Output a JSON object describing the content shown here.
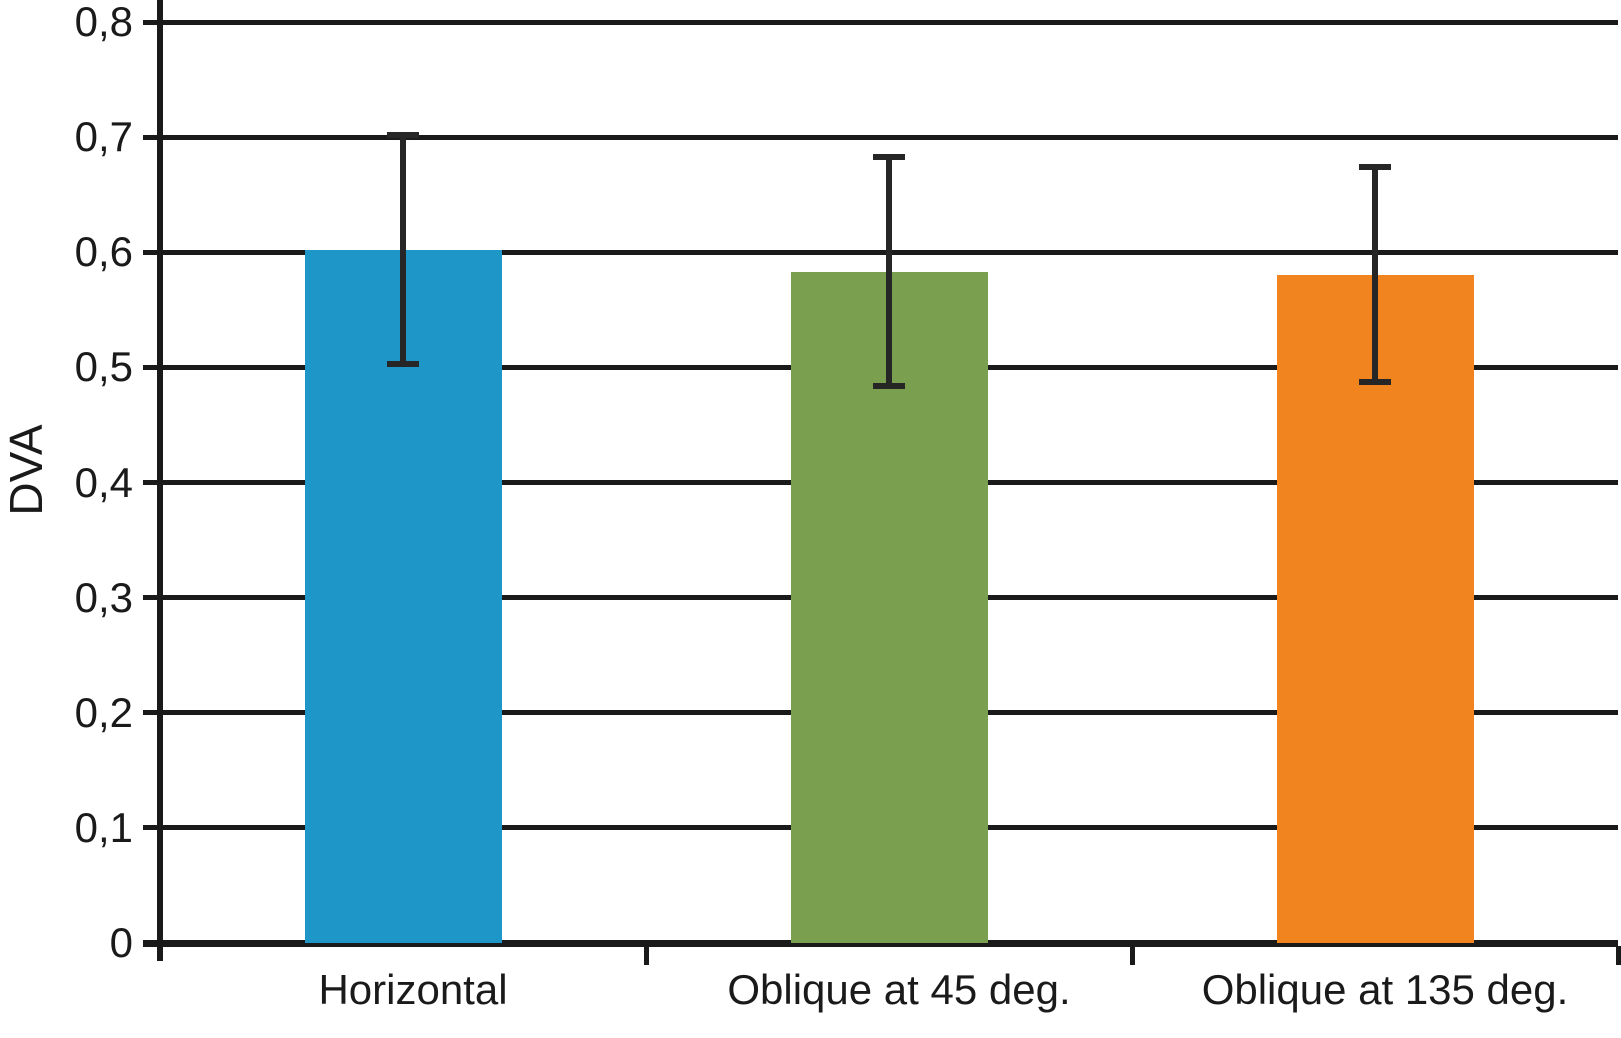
{
  "chart_data": {
    "type": "bar",
    "title": "",
    "xlabel": "",
    "ylabel": "DVA",
    "categories": [
      "Horizontal",
      "Oblique at 45 deg.",
      "Oblique at 135 deg."
    ],
    "values": [
      0.602,
      0.583,
      0.58
    ],
    "error_upper": [
      0.702,
      0.683,
      0.674
    ],
    "error_lower": [
      0.503,
      0.484,
      0.487
    ],
    "bar_colors": [
      "#1e96c8",
      "#7aa04f",
      "#f1841f"
    ],
    "ylim": [
      0,
      0.8
    ],
    "ytick_step": 0.1,
    "ytick_labels": [
      "0",
      "0,1",
      "0,2",
      "0,3",
      "0,4",
      "0,5",
      "0,6",
      "0,7",
      "0,8"
    ],
    "decimal_separator": ",",
    "grid": true,
    "legend": "none",
    "axis_color": "#1a1a1a",
    "background_color": "#ffffff"
  }
}
